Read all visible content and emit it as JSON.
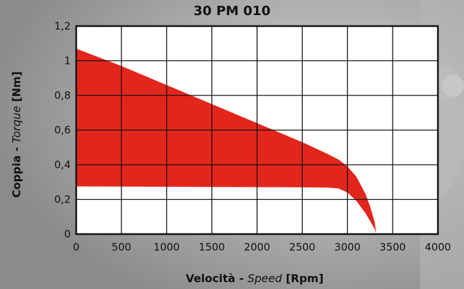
{
  "chart_data": {
    "type": "area",
    "title": "30 PM 010",
    "ylabel": {
      "main": "Coppia - ",
      "italic": "Torque",
      "unit": " [Nm]"
    },
    "xlabel": {
      "main": "Velocità - ",
      "italic": "Speed",
      "unit": " [Rpm]"
    },
    "xlim": [
      0,
      4000
    ],
    "ylim": [
      0,
      1.2
    ],
    "xticks": [
      0,
      500,
      1000,
      1500,
      2000,
      2500,
      3000,
      3500,
      4000
    ],
    "xtick_labels": [
      "0",
      "500",
      "1000",
      "1500",
      "2000",
      "2500",
      "3000",
      "3500",
      "4000"
    ],
    "yticks": [
      0,
      0.2,
      0.4,
      0.6,
      0.8,
      1.0,
      1.2
    ],
    "ytick_labels": [
      "0",
      "0,2",
      "0,4",
      "0,6",
      "0,8",
      "1",
      "1,2"
    ],
    "grid": true,
    "series": [
      {
        "color": "#e3261c",
        "fill": "between",
        "x": [
          0,
          500,
          1000,
          1500,
          2000,
          2500,
          2750,
          2900,
          3000,
          3100,
          3200,
          3250,
          3300,
          3320
        ],
        "values": [
          1.07,
          0.97,
          0.86,
          0.75,
          0.64,
          0.53,
          0.47,
          0.43,
          0.39,
          0.33,
          0.23,
          0.16,
          0.07,
          0.0
        ]
      },
      {
        "color": "#ffffff",
        "fill": "below",
        "x": [
          0,
          500,
          1000,
          1500,
          2000,
          2500,
          2800,
          2900,
          3000,
          3100,
          3200,
          3300,
          3320
        ],
        "values": [
          0.275,
          0.274,
          0.273,
          0.272,
          0.271,
          0.27,
          0.268,
          0.263,
          0.24,
          0.19,
          0.12,
          0.03,
          0.0
        ]
      }
    ]
  }
}
